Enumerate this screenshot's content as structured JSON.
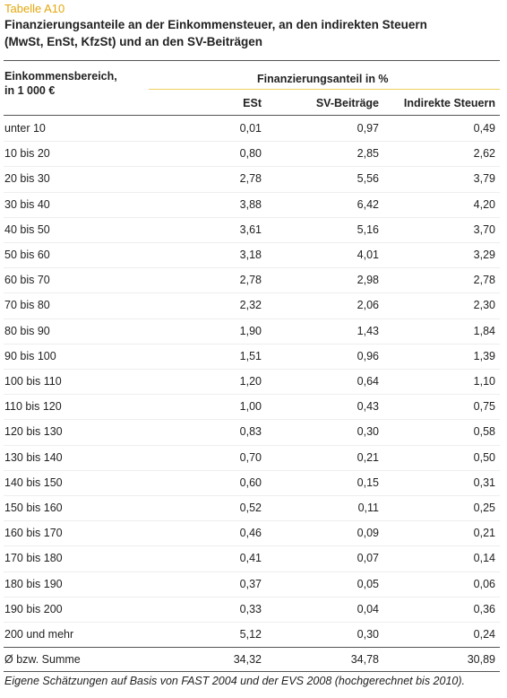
{
  "label": "Tabelle A10",
  "title": [
    "Finanzierungsanteile an der Einkommensteuer, an den indirekten Steuern",
    "(MwSt, EnSt, KfzSt) und an den SV-Beiträgen"
  ],
  "table": {
    "row_header": [
      "Einkommensbereich,",
      "in 1 000 €"
    ],
    "group_header": "Finanzierungsanteil in %",
    "columns": [
      "ESt",
      "SV-Beiträge",
      "Indirekte Steuern"
    ],
    "rows": [
      [
        "unter 10",
        "0,01",
        "0,97",
        "0,49"
      ],
      [
        "10 bis 20",
        "0,80",
        "2,85",
        "2,62"
      ],
      [
        "20 bis 30",
        "2,78",
        "5,56",
        "3,79"
      ],
      [
        "30 bis 40",
        "3,88",
        "6,42",
        "4,20"
      ],
      [
        "40 bis 50",
        "3,61",
        "5,16",
        "3,70"
      ],
      [
        "50 bis 60",
        "3,18",
        "4,01",
        "3,29"
      ],
      [
        "60 bis 70",
        "2,78",
        "2,98",
        "2,78"
      ],
      [
        "70 bis 80",
        "2,32",
        "2,06",
        "2,30"
      ],
      [
        "80 bis 90",
        "1,90",
        "1,43",
        "1,84"
      ],
      [
        "90 bis 100",
        "1,51",
        "0,96",
        "1,39"
      ],
      [
        "100 bis 110",
        "1,20",
        "0,64",
        "1,10"
      ],
      [
        "110 bis 120",
        "1,00",
        "0,43",
        "0,75"
      ],
      [
        "120 bis 130",
        "0,83",
        "0,30",
        "0,58"
      ],
      [
        "130 bis 140",
        "0,70",
        "0,21",
        "0,50"
      ],
      [
        "140 bis 150",
        "0,60",
        "0,15",
        "0,31"
      ],
      [
        "150 bis 160",
        "0,52",
        "0,11",
        "0,25"
      ],
      [
        "160 bis 170",
        "0,46",
        "0,09",
        "0,21"
      ],
      [
        "170 bis 180",
        "0,41",
        "0,07",
        "0,14"
      ],
      [
        "180 bis 190",
        "0,37",
        "0,05",
        "0,06"
      ],
      [
        "190 bis 200",
        "0,33",
        "0,04",
        "0,36"
      ],
      [
        "200 und mehr",
        "5,12",
        "0,30",
        "0,24"
      ],
      [
        "Ø bzw. Summe",
        "34,32",
        "34,78",
        "30,89"
      ]
    ]
  },
  "footnote": "Eigene Schätzungen auf Basis von FAST 2004 und der EVS 2008 (hochgerechnet bis 2010)."
}
